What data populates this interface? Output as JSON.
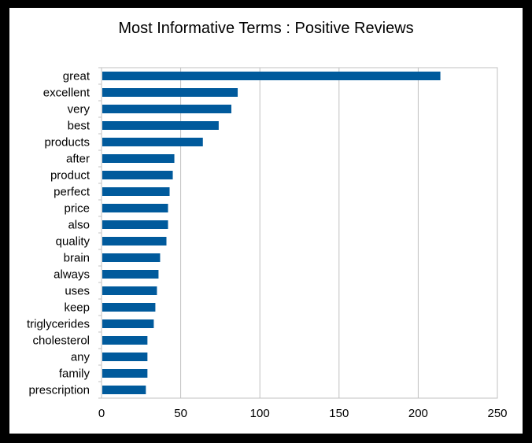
{
  "chart_data": {
    "type": "bar",
    "orientation": "horizontal",
    "title": "Most Informative Terms : Positive Reviews",
    "xlabel": "",
    "ylabel": "",
    "xlim": [
      0,
      250
    ],
    "xticks": [
      0,
      50,
      100,
      150,
      200,
      250
    ],
    "grid": true,
    "categories": [
      "great",
      "excellent",
      "very",
      "best",
      "products",
      "after",
      "product",
      "perfect",
      "price",
      "also",
      "quality",
      "brain",
      "always",
      "uses",
      "keep",
      "triglycerides",
      "cholesterol",
      "any",
      "family",
      "prescription"
    ],
    "values": [
      214,
      86,
      82,
      74,
      64,
      46,
      45,
      43,
      42,
      42,
      41,
      37,
      36,
      35,
      34,
      33,
      29,
      29,
      29,
      28
    ],
    "bar_color": "#005a9c",
    "grid_color": "#c0c0c0"
  }
}
